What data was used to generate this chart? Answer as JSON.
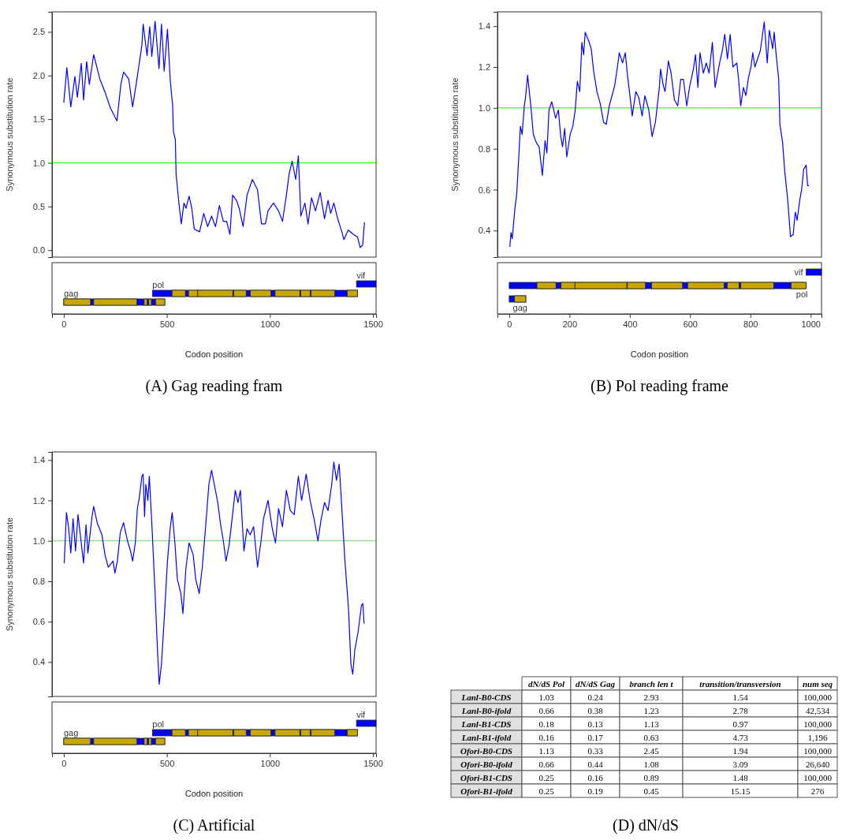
{
  "chart_data": [
    {
      "type": "line",
      "title": "(A) Gag reading fram",
      "xlabel": "Codon position",
      "ylabel": "Synonymous substitution rate",
      "xlim": [
        -57,
        1515
      ],
      "ylim": [
        -0.08,
        2.73
      ],
      "xticks": [
        0,
        500,
        1000,
        1500
      ],
      "yticks": [
        {
          "value": 0,
          "label": "0.0"
        },
        {
          "value": 0.5,
          "label": "0.5"
        },
        {
          "value": 1,
          "label": "1.0"
        },
        {
          "value": 1.5,
          "label": "1.5"
        },
        {
          "value": 2,
          "label": "2.0"
        },
        {
          "value": 2.5,
          "label": "2.5"
        }
      ],
      "ref_lines": [
        {
          "axis": "y",
          "value": 1,
          "color": "#00ff00"
        }
      ],
      "annotations": [
        "vif",
        "pol",
        "gag"
      ],
      "series": [
        {
          "color": "#0000ff",
          "x": [
            0,
            15,
            34,
            54,
            66,
            85,
            96,
            111,
            124,
            145,
            175,
            200,
            226,
            258,
            277,
            290,
            315,
            334,
            353,
            379,
            385,
            404,
            417,
            427,
            443,
            462,
            474,
            487,
            503,
            517,
            528,
            532,
            541,
            545,
            557,
            570,
            583,
            593,
            608,
            621,
            633,
            659,
            679,
            698,
            717,
            736,
            755,
            774,
            790,
            806,
            819,
            838,
            851,
            870,
            889,
            915,
            940,
            959,
            978,
            991,
            1017,
            1042,
            1061,
            1080,
            1093,
            1108,
            1125,
            1138,
            1150,
            1170,
            1185,
            1202,
            1221,
            1244,
            1265,
            1282,
            1295,
            1310,
            1329,
            1349,
            1359,
            1380,
            1406,
            1425,
            1438,
            1450,
            1459
          ],
          "values": [
            1.69,
            2.09,
            1.64,
            1.99,
            1.75,
            2.14,
            1.72,
            2.16,
            1.9,
            2.24,
            1.96,
            1.81,
            1.63,
            1.48,
            1.9,
            2.04,
            1.96,
            1.64,
            1.93,
            2.35,
            2.59,
            2.23,
            2.56,
            2.22,
            2.62,
            2.08,
            2.59,
            2.05,
            2.53,
            1.93,
            1.66,
            1.36,
            1.27,
            0.87,
            0.57,
            0.3,
            0.54,
            0.48,
            0.62,
            0.48,
            0.24,
            0.21,
            0.42,
            0.27,
            0.39,
            0.27,
            0.51,
            0.33,
            0.33,
            0.18,
            0.63,
            0.57,
            0.48,
            0.27,
            0.63,
            0.81,
            0.69,
            0.3,
            0.3,
            0.45,
            0.54,
            0.45,
            0.33,
            0.63,
            0.87,
            1.02,
            0.81,
            1.08,
            0.39,
            0.54,
            0.3,
            0.6,
            0.45,
            0.66,
            0.36,
            0.57,
            0.42,
            0.54,
            0.36,
            0.21,
            0.12,
            0.23,
            0.18,
            0.15,
            0.03,
            0.06,
            0.32
          ]
        }
      ]
    },
    {
      "type": "line",
      "title": "(B) Pol reading frame",
      "xlabel": "Codon position",
      "ylabel": "Synonymous substitution rate",
      "xlim": [
        -39,
        1036
      ],
      "ylim": [
        0.27,
        1.47
      ],
      "xticks": [
        0,
        200,
        400,
        600,
        800,
        1000
      ],
      "yticks": [
        0.4,
        0.6,
        0.8,
        {
          "value": 1,
          "label": "1.0"
        },
        1.2,
        1.4
      ],
      "ref_lines": [
        {
          "axis": "y",
          "value": 1,
          "color": "#00ff00"
        }
      ],
      "annotations": [
        "vif",
        "pol",
        "gag"
      ],
      "series": [
        {
          "color": "#0000ff",
          "x": [
            2,
            6,
            10,
            19,
            25,
            32,
            37,
            43,
            50,
            54,
            61,
            71,
            80,
            90,
            99,
            110,
            119,
            125,
            132,
            141,
            154,
            163,
            171,
            177,
            184,
            191,
            202,
            211,
            219,
            226,
            234,
            241,
            247,
            252,
            263,
            272,
            280,
            291,
            302,
            313,
            322,
            332,
            341,
            350,
            359,
            365,
            376,
            385,
            393,
            402,
            408,
            420,
            430,
            441,
            450,
            463,
            474,
            485,
            498,
            502,
            511,
            517,
            528,
            537,
            548,
            559,
            569,
            578,
            589,
            598,
            611,
            618,
            626,
            633,
            644,
            654,
            663,
            674,
            683,
            698,
            707,
            715,
            724,
            733,
            742,
            755,
            761,
            768,
            777,
            785,
            794,
            802,
            808,
            815,
            833,
            846,
            856,
            863,
            874,
            879,
            885,
            894,
            898,
            907,
            914,
            924,
            933,
            942,
            949,
            955,
            964,
            970,
            977,
            985,
            990,
            994
          ],
          "values": [
            0.32,
            0.39,
            0.36,
            0.51,
            0.58,
            0.77,
            0.91,
            0.87,
            1.01,
            1.05,
            1.16,
            1.02,
            0.87,
            0.83,
            0.81,
            0.67,
            0.84,
            0.78,
            0.99,
            1.03,
            0.95,
            0.99,
            0.86,
            0.81,
            0.9,
            0.76,
            0.87,
            0.91,
            0.99,
            1.13,
            1.08,
            1.32,
            1.26,
            1.37,
            1.33,
            1.29,
            1.18,
            1.08,
            1.02,
            0.93,
            0.92,
            1.01,
            1.06,
            1.11,
            1.2,
            1.27,
            1.22,
            1.27,
            1.15,
            1.04,
            0.96,
            1.08,
            1.05,
            0.96,
            1.06,
            0.99,
            0.86,
            0.93,
            1.1,
            1.19,
            1.11,
            1.08,
            1.23,
            1.17,
            1.04,
            1.01,
            1.14,
            1.14,
            1.01,
            1.1,
            1.19,
            1.26,
            1.1,
            1.27,
            1.17,
            1.22,
            1.17,
            1.32,
            1.1,
            1.22,
            1.28,
            1.36,
            1.24,
            1.36,
            1.2,
            1.22,
            1.14,
            1.01,
            1.1,
            1.06,
            1.15,
            1.2,
            1.27,
            1.2,
            1.28,
            1.42,
            1.22,
            1.38,
            1.29,
            1.37,
            1.27,
            1.14,
            0.92,
            0.83,
            0.69,
            0.55,
            0.37,
            0.38,
            0.49,
            0.45,
            0.55,
            0.6,
            0.7,
            0.72,
            0.62,
            0.62
          ]
        }
      ]
    },
    {
      "type": "line",
      "title": "(C) Artificial",
      "xlabel": "Codon position",
      "ylabel": "Synonymous substitution rate",
      "xlim": [
        -57,
        1515
      ],
      "ylim": [
        0.23,
        1.44
      ],
      "xticks": [
        0,
        500,
        1000,
        1500
      ],
      "yticks": [
        0.4,
        0.6,
        0.8,
        {
          "value": 1,
          "label": "1.0"
        },
        1.2,
        1.4
      ],
      "ref_lines": [
        {
          "axis": "y",
          "value": 1,
          "color": "#66dd66"
        }
      ],
      "annotations": [
        "vif",
        "pol",
        "gag"
      ],
      "series": [
        {
          "color": "#0000ff",
          "x": [
            2,
            13,
            24,
            34,
            45,
            57,
            69,
            79,
            96,
            108,
            117,
            137,
            145,
            162,
            185,
            200,
            216,
            239,
            248,
            260,
            274,
            290,
            309,
            324,
            334,
            347,
            357,
            366,
            379,
            385,
            392,
            398,
            408,
            415,
            427,
            443,
            455,
            463,
            474,
            487,
            503,
            517,
            526,
            539,
            551,
            568,
            578,
            593,
            608,
            628,
            640,
            657,
            672,
            685,
            692,
            704,
            717,
            730,
            747,
            761,
            774,
            787,
            802,
            819,
            832,
            845,
            857,
            874,
            889,
            904,
            921,
            940,
            957,
            969,
            991,
            1010,
            1027,
            1042,
            1061,
            1080,
            1099,
            1118,
            1138,
            1154,
            1176,
            1195,
            1214,
            1233,
            1249,
            1265,
            1282,
            1300,
            1310,
            1323,
            1336,
            1349,
            1364,
            1381,
            1393,
            1402,
            1412,
            1428,
            1444,
            1451,
            1457
          ],
          "values": [
            0.89,
            1.14,
            1.06,
            0.94,
            1.11,
            0.95,
            1.13,
            1.04,
            0.89,
            1.08,
            0.94,
            1.12,
            1.17,
            1.09,
            1.03,
            0.93,
            0.87,
            0.9,
            0.84,
            0.9,
            1.04,
            1.09,
            1.0,
            0.95,
            0.9,
            0.99,
            1.16,
            1.21,
            1.32,
            1.33,
            1.12,
            1.28,
            1.2,
            1.32,
            1.09,
            0.74,
            0.45,
            0.29,
            0.39,
            0.61,
            0.9,
            1.07,
            1.14,
            0.99,
            0.81,
            0.74,
            0.64,
            0.87,
            0.99,
            0.93,
            0.81,
            0.74,
            0.87,
            1.03,
            1.12,
            1.28,
            1.35,
            1.28,
            1.19,
            1.08,
            1.0,
            0.9,
            0.98,
            1.13,
            1.25,
            1.19,
            1.25,
            0.95,
            1.06,
            1.03,
            1.07,
            0.87,
            1.0,
            1.11,
            1.2,
            1.07,
            0.99,
            1.16,
            1.07,
            1.25,
            1.15,
            1.13,
            1.32,
            1.2,
            1.33,
            1.2,
            1.11,
            1.0,
            1.11,
            1.19,
            1.15,
            1.28,
            1.39,
            1.3,
            1.38,
            1.16,
            0.9,
            0.67,
            0.39,
            0.34,
            0.46,
            0.55,
            0.68,
            0.69,
            0.59
          ]
        }
      ]
    },
    {
      "type": "other",
      "title": "(D) dN/dS",
      "data_labels": true,
      "categories": [
        "Lanl-B0-CDS",
        "Lanl-B0-ifold",
        "Lanl-B1-CDS",
        "Lanl-B1-ifold",
        "Ofori-B0-CDS",
        "Ofori-B0-ifold",
        "Ofori-B1-CDS",
        "Ofori-B1-ifold"
      ],
      "series": [
        {
          "name": "dN/dS Pol",
          "values": [
            1.03,
            0.66,
            0.18,
            0.16,
            1.13,
            0.66,
            0.25,
            0.25
          ]
        },
        {
          "name": "dN/dS Gag",
          "values": [
            0.24,
            0.38,
            0.13,
            0.17,
            0.33,
            0.44,
            0.16,
            0.19
          ]
        },
        {
          "name": "branch len t",
          "values": [
            2.93,
            1.23,
            1.13,
            0.63,
            2.45,
            1.08,
            0.89,
            0.45
          ]
        },
        {
          "name": "transition/transversion",
          "values": [
            1.54,
            2.78,
            0.97,
            4.73,
            1.94,
            3.09,
            1.48,
            15.15
          ]
        },
        {
          "name": "num seq",
          "values": [
            100000,
            42534,
            100000,
            1196,
            100000,
            26640,
            100000,
            276
          ],
          "value_labels": [
            "100,000",
            "42,534",
            "100,000",
            "1,196",
            "100,000",
            "26,640",
            "100,000",
            "276"
          ]
        }
      ]
    }
  ]
}
